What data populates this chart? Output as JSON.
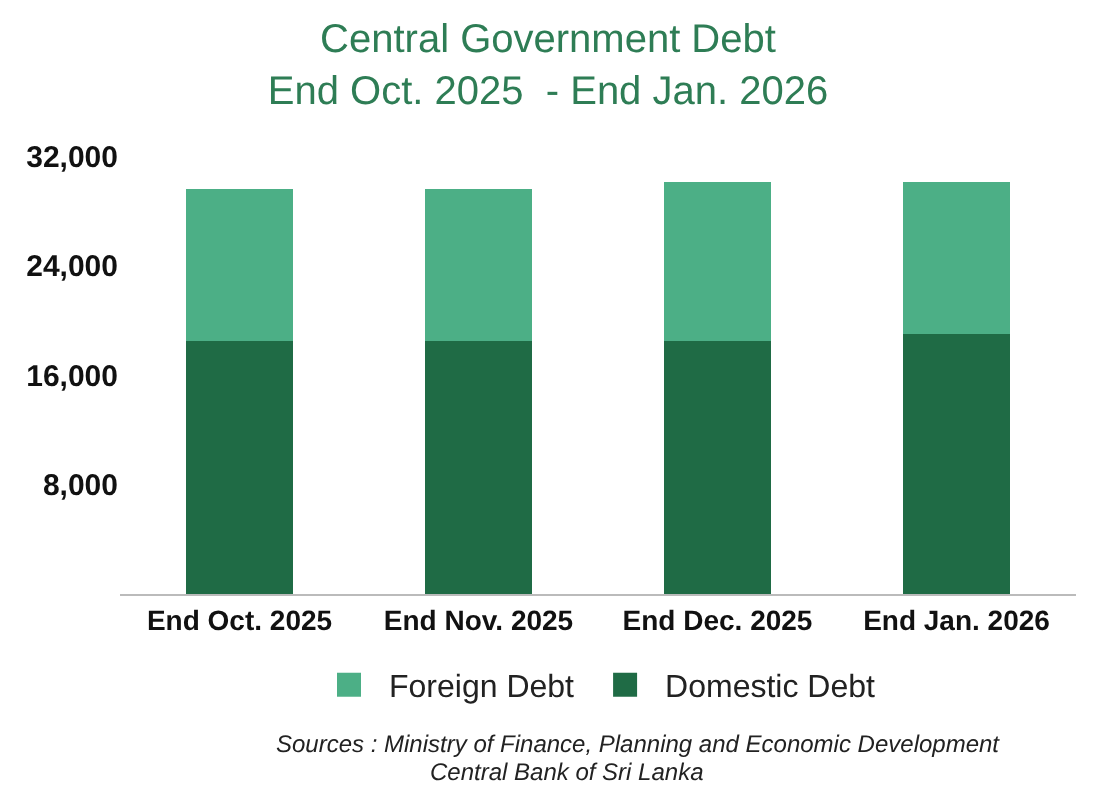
{
  "chart_data": {
    "type": "bar",
    "title": "Central Government Debt",
    "subtitle": "End Oct. 2025  - End Jan. 2026",
    "categories": [
      "End Oct. 2025",
      "End Nov. 2025",
      "End Dec. 2025",
      "End Jan. 2026"
    ],
    "stacked": true,
    "series": [
      {
        "name": "Domestic Debt",
        "color": "#1f6b45",
        "values": [
          18500,
          18500,
          18500,
          19000
        ]
      },
      {
        "name": "Foreign Debt",
        "color": "#4caf86",
        "values": [
          11100,
          11100,
          11600,
          11100
        ]
      }
    ],
    "ylim": [
      0,
      32000
    ],
    "yticks": [
      {
        "value": 8000,
        "label": "8,000"
      },
      {
        "value": 16000,
        "label": "16,000"
      },
      {
        "value": 24000,
        "label": "24,000"
      },
      {
        "value": 32000,
        "label": "32,000"
      }
    ],
    "grid": false,
    "legend": "bottom",
    "annotations": [
      "Sources : Ministry of Finance, Planning and Economic Development",
      "Central Bank of Sri Lanka"
    ]
  }
}
